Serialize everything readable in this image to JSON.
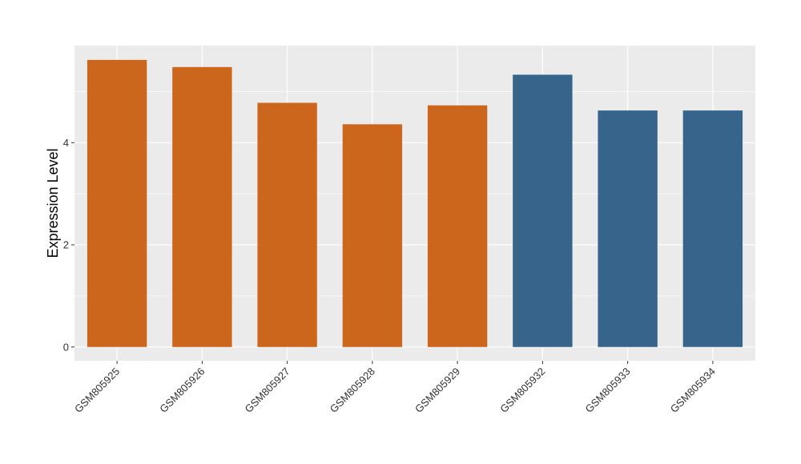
{
  "chart_data": {
    "type": "bar",
    "ylabel": "Expression Level",
    "xlabel": "",
    "categories": [
      "GSM805925",
      "GSM805926",
      "GSM805927",
      "GSM805928",
      "GSM805929",
      "GSM805932",
      "GSM805933",
      "GSM805934"
    ],
    "values": [
      5.62,
      5.48,
      4.78,
      4.36,
      4.73,
      5.33,
      4.63,
      4.63
    ],
    "bar_colors": [
      "#CC661C",
      "#CC661C",
      "#CC661C",
      "#CC661C",
      "#CC661C",
      "#36648B",
      "#36648B",
      "#36648B"
    ],
    "ylim": [
      -0.27,
      5.9
    ],
    "yticks": [
      0,
      2,
      4
    ],
    "grid": true,
    "panel_background": "#EBEBEB",
    "grid_color": "#FFFFFF"
  }
}
